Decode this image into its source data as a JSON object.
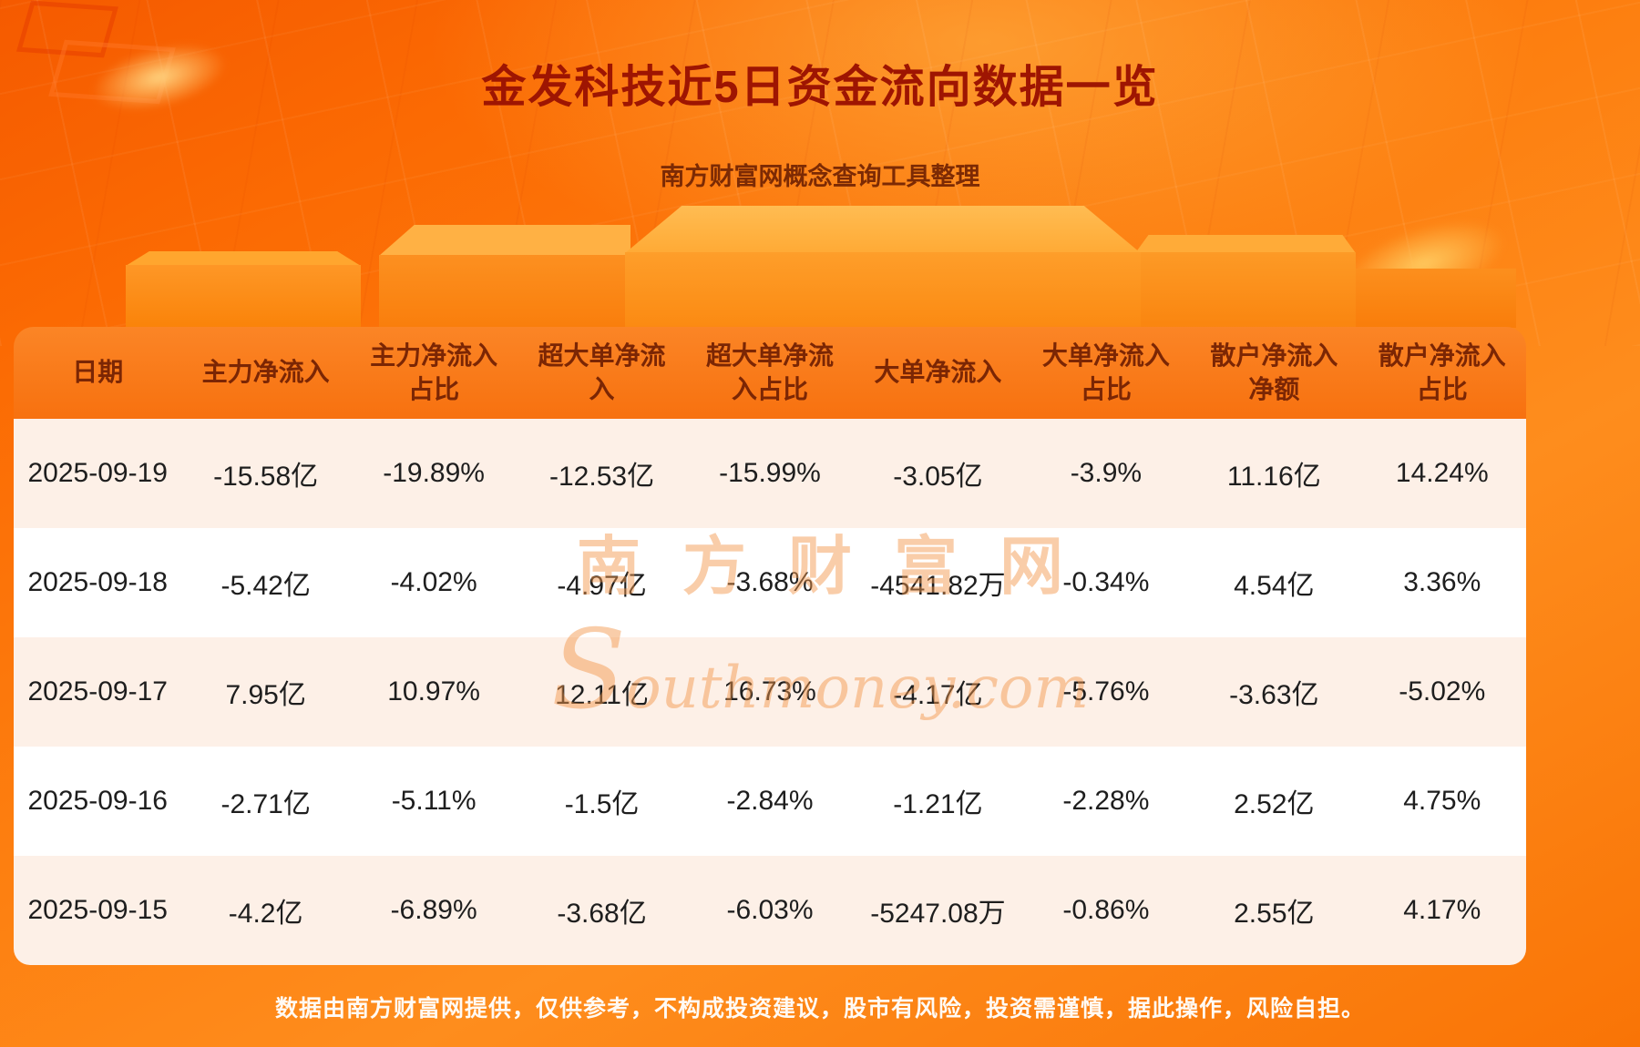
{
  "header": {
    "title": "金发科技近5日资金流向数据一览",
    "subtitle": "南方财富网概念查询工具整理"
  },
  "watermark": {
    "cn": "南方财富网",
    "en": "Southmoney.com"
  },
  "footer": {
    "disclaimer": "数据由南方财富网提供，仅供参考，不构成投资建议，股市有风险，投资需谨慎，据此操作，风险自担。"
  },
  "colors": {
    "background_orange": "#fd7f10",
    "title_red": "#9e1502",
    "subtitle_brown": "#7c2a04",
    "table_header_bg": "#f87712",
    "table_header_text": "#7b2604",
    "row_stripe_cream": "#fdf0e7",
    "row_white": "#ffffff",
    "cell_text": "#1e1e1e",
    "disclaimer_text": "#fffaf4"
  },
  "chart_data": {
    "type": "table",
    "title": "金发科技近5日资金流向数据一览",
    "subtitle": "南方财富网概念查询工具整理",
    "columns": [
      "日期",
      "主力净流入",
      "主力净流入占比",
      "超大单净流入",
      "超大单净流入占比",
      "大单净流入",
      "大单净流入占比",
      "散户净流入净额",
      "散户净流入占比"
    ],
    "rows": [
      [
        "2025-09-19",
        "-15.58亿",
        "-19.89%",
        "-12.53亿",
        "-15.99%",
        "-3.05亿",
        "-3.9%",
        "11.16亿",
        "14.24%"
      ],
      [
        "2025-09-18",
        "-5.42亿",
        "-4.02%",
        "-4.97亿",
        "-3.68%",
        "-4541.82万",
        "-0.34%",
        "4.54亿",
        "3.36%"
      ],
      [
        "2025-09-17",
        "7.95亿",
        "10.97%",
        "12.11亿",
        "16.73%",
        "-4.17亿",
        "-5.76%",
        "-3.63亿",
        "-5.02%"
      ],
      [
        "2025-09-16",
        "-2.71亿",
        "-5.11%",
        "-1.5亿",
        "-2.84%",
        "-1.21亿",
        "-2.28%",
        "2.52亿",
        "4.75%"
      ],
      [
        "2025-09-15",
        "-4.2亿",
        "-6.89%",
        "-3.68亿",
        "-6.03%",
        "-5247.08万",
        "-0.86%",
        "2.55亿",
        "4.17%"
      ]
    ]
  }
}
